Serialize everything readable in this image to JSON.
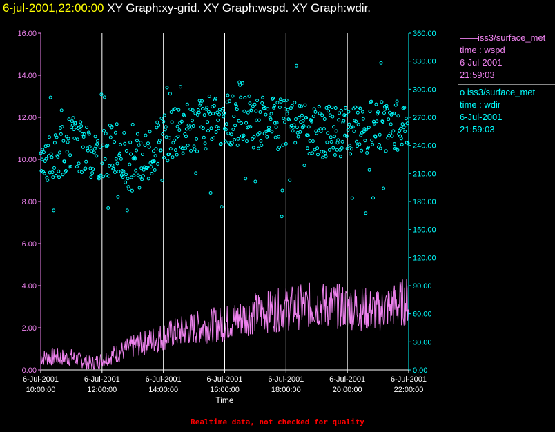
{
  "header": {
    "timestamp": "6-jul-2001,22:00:00",
    "plots": [
      "XY Graph:xy-grid.",
      "XY Graph:wspd.",
      "XY Graph:wdir."
    ]
  },
  "legend": [
    {
      "marker": "——",
      "dataset": "iss3/surface_met",
      "var_line": "time : wspd",
      "date": "6-Jul-2001",
      "time": "21:59:03",
      "color": "#ee82ee"
    },
    {
      "marker": "o",
      "dataset": "iss3/surface_met",
      "var_line": "time : wdir",
      "date": "6-Jul-2001",
      "time": "21:59:03",
      "color": "#00ffff"
    }
  ],
  "note": "Realtime data, not checked for quality",
  "colors": {
    "wspd": "#ee82ee",
    "wdir": "#00ffff",
    "grid": "#ffffff",
    "background": "#000000",
    "timestamp": "#ffff00",
    "note": "#ff0000"
  },
  "chart_data": {
    "type": "line",
    "xlabel": "Time",
    "x_ticks": [
      {
        "date": "6-Jul-2001",
        "time": "10:00:00"
      },
      {
        "date": "6-Jul-2001",
        "time": "12:00:00"
      },
      {
        "date": "6-Jul-2001",
        "time": "14:00:00"
      },
      {
        "date": "6-Jul-2001",
        "time": "16:00:00"
      },
      {
        "date": "6-Jul-2001",
        "time": "18:00:00"
      },
      {
        "date": "6-Jul-2001",
        "time": "20:00:00"
      },
      {
        "date": "6-Jul-2001",
        "time": "22:00:00"
      }
    ],
    "xlim": [
      "6-Jul-2001 10:00:00",
      "6-Jul-2001 22:00:00"
    ],
    "left_axis": {
      "ylim": [
        0,
        16
      ],
      "ticks": [
        "0.00",
        "2.00",
        "4.00",
        "6.00",
        "8.00",
        "10.00",
        "12.00",
        "14.00",
        "16.00"
      ]
    },
    "right_axis": {
      "ylim": [
        0,
        360
      ],
      "ticks": [
        "0.00",
        "30.00",
        "60.00",
        "90.00",
        "120.00",
        "150.00",
        "180.00",
        "210.00",
        "240.00",
        "270.00",
        "300.00",
        "330.00",
        "360.00"
      ]
    },
    "grid": "vertical lines at each time tick",
    "series": [
      {
        "name": "wspd",
        "axis": "left",
        "style": "line",
        "color": "#ee82ee",
        "trend": [
          {
            "time": "10:00",
            "value": 0.6
          },
          {
            "time": "11:00",
            "value": 0.6
          },
          {
            "time": "11:40",
            "value": 0.3
          },
          {
            "time": "12:00",
            "value": 0.5
          },
          {
            "time": "13:00",
            "value": 1.1
          },
          {
            "time": "14:00",
            "value": 1.6
          },
          {
            "time": "15:00",
            "value": 2.0
          },
          {
            "time": "16:00",
            "value": 2.2
          },
          {
            "time": "17:00",
            "value": 2.7
          },
          {
            "time": "18:00",
            "value": 2.9
          },
          {
            "time": "19:00",
            "value": 3.1
          },
          {
            "time": "20:00",
            "value": 3.0
          },
          {
            "time": "21:00",
            "value": 2.8
          },
          {
            "time": "22:00",
            "value": 3.3
          }
        ]
      },
      {
        "name": "wdir",
        "axis": "right",
        "style": "points",
        "color": "#00ffff",
        "trend": [
          {
            "time": "10:00",
            "value": 225
          },
          {
            "time": "10:30",
            "value": 230
          },
          {
            "time": "11:00",
            "value": 245
          },
          {
            "time": "11:30",
            "value": 235
          },
          {
            "time": "12:00",
            "value": 228
          },
          {
            "time": "12:30",
            "value": 240
          },
          {
            "time": "13:00",
            "value": 215
          },
          {
            "time": "13:30",
            "value": 225
          },
          {
            "time": "14:00",
            "value": 248
          },
          {
            "time": "15:00",
            "value": 262
          },
          {
            "time": "16:00",
            "value": 268
          },
          {
            "time": "17:00",
            "value": 265
          },
          {
            "time": "18:00",
            "value": 262
          },
          {
            "time": "19:00",
            "value": 255
          },
          {
            "time": "20:00",
            "value": 255
          },
          {
            "time": "21:00",
            "value": 262
          },
          {
            "time": "22:00",
            "value": 260
          }
        ]
      }
    ]
  }
}
